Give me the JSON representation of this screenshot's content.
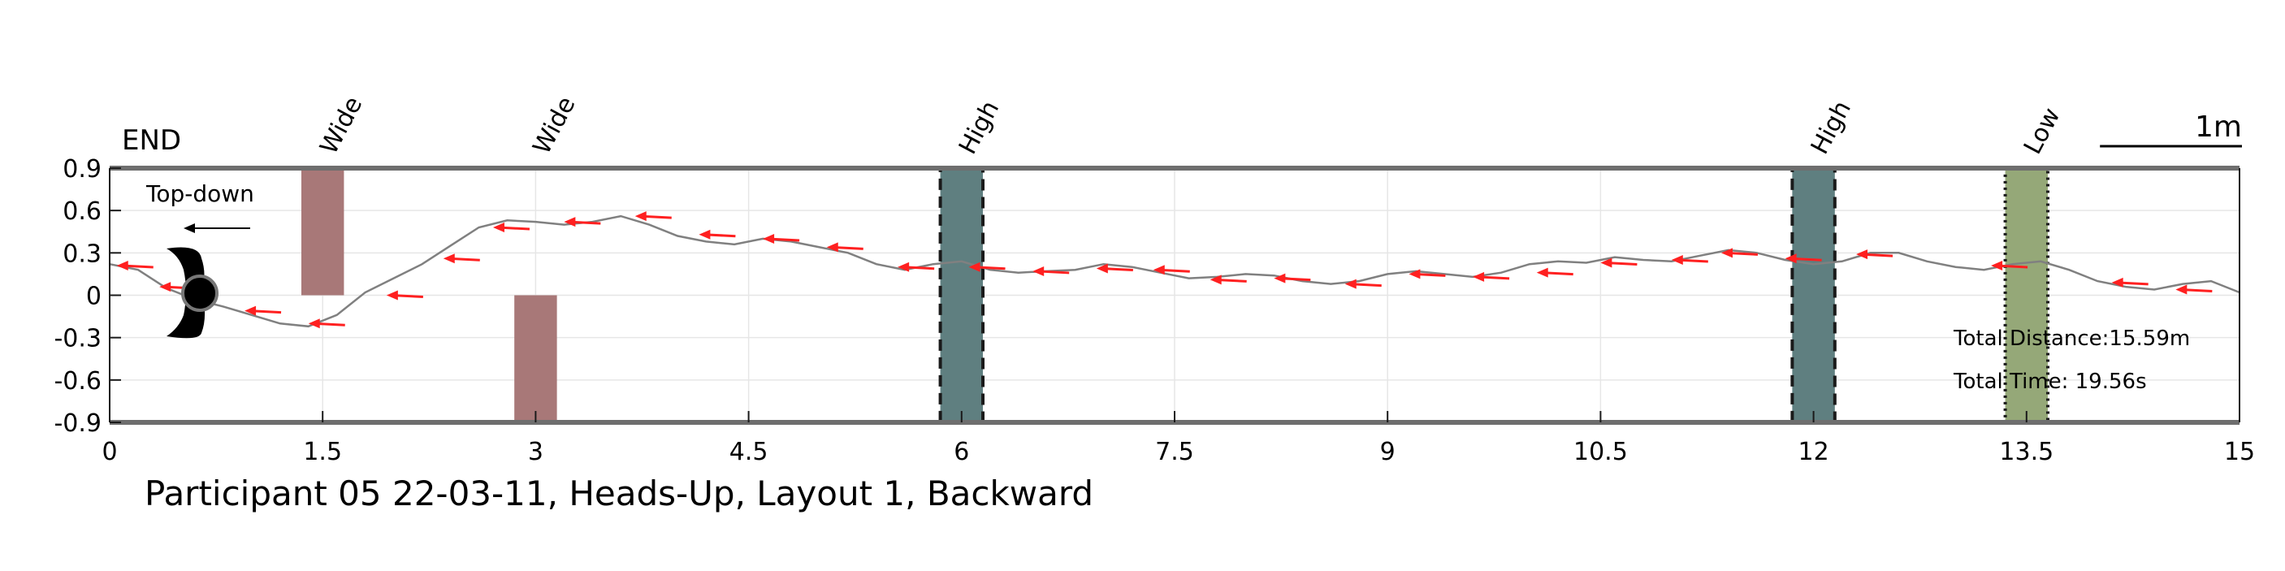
{
  "chart_data": {
    "type": "line",
    "title": "Participant 05 22-03-11, Heads-Up, Layout 1, Backward",
    "xlabel": "",
    "ylabel": "",
    "xlim": [
      0,
      15
    ],
    "ylim": [
      -0.9,
      0.9
    ],
    "xticks": [
      0,
      1.5,
      3,
      4.5,
      6,
      7.5,
      9,
      10.5,
      12,
      13.5,
      15
    ],
    "xtick_labels": [
      "0",
      "1.5",
      "3",
      "4.5",
      "6",
      "7.5",
      "9",
      "10.5",
      "12",
      "13.5",
      "15"
    ],
    "yticks": [
      0.9,
      0.6,
      0.3,
      0,
      -0.3,
      -0.6,
      -0.9
    ],
    "ytick_labels": [
      "0.9",
      "0.6",
      "0.3",
      "0",
      "-0.3",
      "-0.6",
      "-0.9"
    ],
    "grid": true,
    "end_label": "END",
    "inset_label": "Top-down",
    "scale_bar_label": "1m",
    "scale_bar_length_m": 1,
    "total_distance": "Total Distance:15.59m",
    "total_time": "Total Time: 19.56s",
    "path_color": "#808080",
    "arrow_color": "#ff2020",
    "obstacles": [
      {
        "label": "Wide",
        "x_start": 1.35,
        "x_end": 1.65,
        "y_start": 0.0,
        "y_end": 0.9,
        "color": "#a87878",
        "border": "none"
      },
      {
        "label": "Wide",
        "x_start": 2.85,
        "x_end": 3.15,
        "y_start": -0.9,
        "y_end": 0.0,
        "color": "#a87878",
        "border": "none"
      },
      {
        "label": "High",
        "x_start": 5.85,
        "x_end": 6.15,
        "y_start": -0.9,
        "y_end": 0.9,
        "color": "#5f7f80",
        "border": "dashed"
      },
      {
        "label": "High",
        "x_start": 11.85,
        "x_end": 12.15,
        "y_start": -0.9,
        "y_end": 0.9,
        "color": "#5f7f80",
        "border": "dashed"
      },
      {
        "label": "Low",
        "x_start": 13.35,
        "x_end": 13.65,
        "y_start": -0.9,
        "y_end": 0.9,
        "color": "#95a878",
        "border": "dotted"
      }
    ],
    "series": [
      {
        "x": [
          0.0,
          0.2,
          0.4,
          0.6,
          0.8,
          1.0,
          1.2,
          1.4,
          1.6,
          1.8,
          2.0,
          2.2,
          2.4,
          2.6,
          2.8,
          3.0,
          3.2,
          3.4,
          3.6,
          3.8,
          4.0,
          4.2,
          4.4,
          4.6,
          4.8,
          5.0,
          5.2,
          5.4,
          5.6,
          5.8,
          6.0,
          6.2,
          6.4,
          6.6,
          6.8,
          7.0,
          7.2,
          7.4,
          7.6,
          7.8,
          8.0,
          8.2,
          8.4,
          8.6,
          8.8,
          9.0,
          9.2,
          9.4,
          9.6,
          9.8,
          10.0,
          10.2,
          10.4,
          10.6,
          10.8,
          11.0,
          11.2,
          11.4,
          11.6,
          11.8,
          12.0,
          12.2,
          12.4,
          12.6,
          12.8,
          13.0,
          13.2,
          13.4,
          13.6,
          13.8,
          14.0,
          14.2,
          14.4,
          14.6,
          14.8,
          15.0
        ],
        "y": [
          0.22,
          0.18,
          0.05,
          -0.03,
          -0.08,
          -0.14,
          -0.2,
          -0.22,
          -0.14,
          0.02,
          0.12,
          0.22,
          0.35,
          0.48,
          0.53,
          0.52,
          0.5,
          0.52,
          0.56,
          0.5,
          0.42,
          0.38,
          0.36,
          0.4,
          0.38,
          0.34,
          0.3,
          0.22,
          0.18,
          0.22,
          0.24,
          0.18,
          0.16,
          0.17,
          0.18,
          0.22,
          0.2,
          0.16,
          0.12,
          0.13,
          0.15,
          0.14,
          0.1,
          0.08,
          0.1,
          0.15,
          0.17,
          0.15,
          0.13,
          0.16,
          0.22,
          0.24,
          0.23,
          0.27,
          0.25,
          0.24,
          0.28,
          0.32,
          0.3,
          0.25,
          0.22,
          0.24,
          0.3,
          0.3,
          0.24,
          0.2,
          0.18,
          0.22,
          0.24,
          0.18,
          0.1,
          0.06,
          0.04,
          0.08,
          0.1,
          0.02
        ]
      }
    ],
    "arrows": [
      {
        "x": 0.05,
        "y": 0.21
      },
      {
        "x": 0.35,
        "y": 0.06
      },
      {
        "x": 0.95,
        "y": -0.11
      },
      {
        "x": 1.4,
        "y": -0.2
      },
      {
        "x": 1.95,
        "y": 0.0
      },
      {
        "x": 2.35,
        "y": 0.26
      },
      {
        "x": 2.7,
        "y": 0.48
      },
      {
        "x": 3.2,
        "y": 0.52
      },
      {
        "x": 3.7,
        "y": 0.56
      },
      {
        "x": 4.15,
        "y": 0.43
      },
      {
        "x": 4.6,
        "y": 0.4
      },
      {
        "x": 5.05,
        "y": 0.34
      },
      {
        "x": 5.55,
        "y": 0.2
      },
      {
        "x": 6.05,
        "y": 0.2
      },
      {
        "x": 6.5,
        "y": 0.17
      },
      {
        "x": 6.95,
        "y": 0.19
      },
      {
        "x": 7.35,
        "y": 0.18
      },
      {
        "x": 7.75,
        "y": 0.11
      },
      {
        "x": 8.2,
        "y": 0.12
      },
      {
        "x": 8.7,
        "y": 0.08
      },
      {
        "x": 9.15,
        "y": 0.15
      },
      {
        "x": 9.6,
        "y": 0.13
      },
      {
        "x": 10.05,
        "y": 0.16
      },
      {
        "x": 10.5,
        "y": 0.23
      },
      {
        "x": 11.0,
        "y": 0.25
      },
      {
        "x": 11.35,
        "y": 0.3
      },
      {
        "x": 11.8,
        "y": 0.26
      },
      {
        "x": 12.3,
        "y": 0.29
      },
      {
        "x": 13.25,
        "y": 0.21
      },
      {
        "x": 14.1,
        "y": 0.09
      },
      {
        "x": 14.55,
        "y": 0.04
      }
    ]
  }
}
